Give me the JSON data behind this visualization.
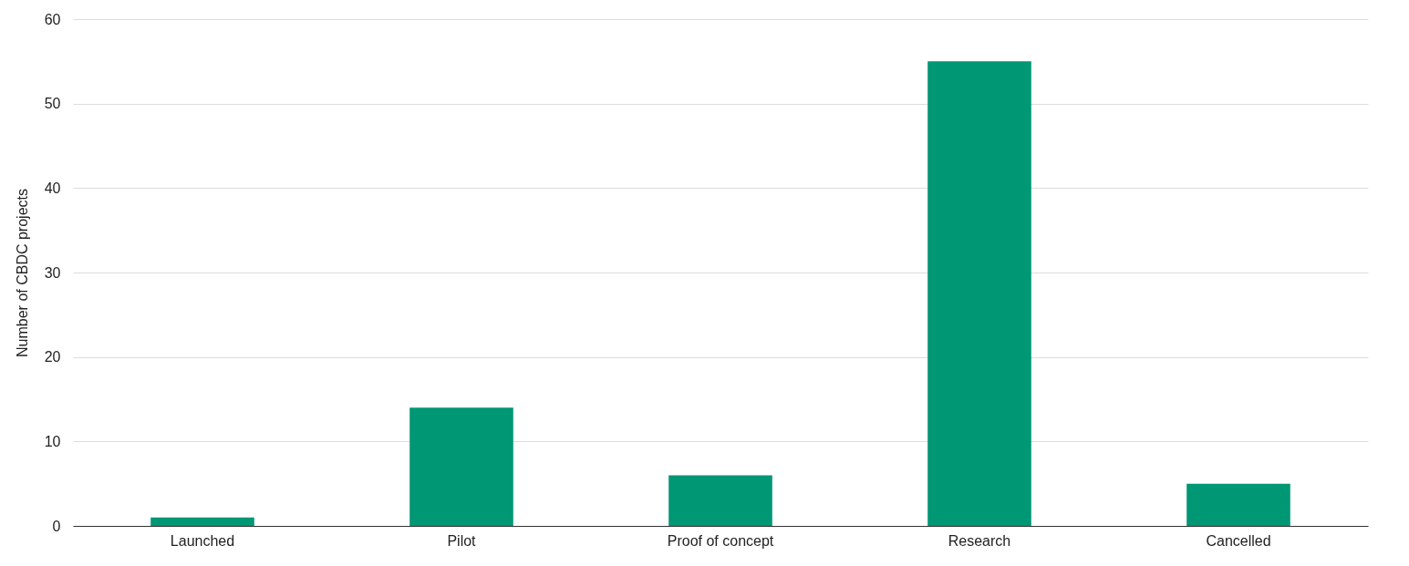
{
  "chart_data": {
    "type": "bar",
    "ylabel": "Number of CBDC projects",
    "categories": [
      "Launched",
      "Pilot",
      "Proof of concept",
      "Research",
      "Cancelled"
    ],
    "values": [
      1,
      14,
      6,
      55,
      5
    ],
    "color": "#009775",
    "ylim": [
      0,
      60
    ],
    "yticks": [
      0,
      10,
      20,
      30,
      40,
      50,
      60
    ],
    "grid": "y"
  }
}
